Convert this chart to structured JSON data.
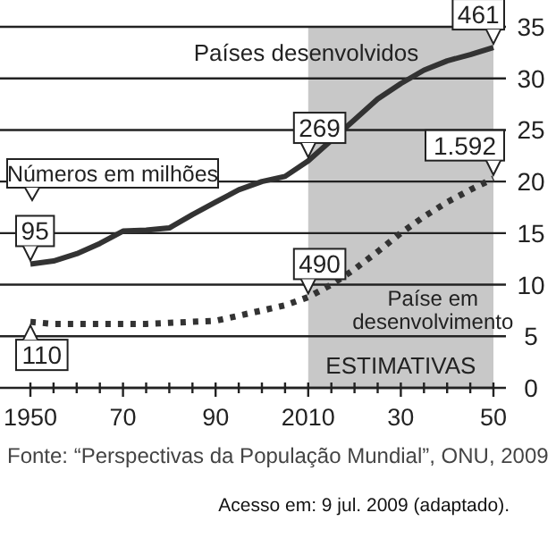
{
  "chart_data": {
    "type": "line",
    "x": [
      1950,
      1955,
      1960,
      1965,
      1970,
      1975,
      1980,
      1985,
      1990,
      1995,
      2000,
      2005,
      2010,
      2015,
      2020,
      2025,
      2030,
      2035,
      2040,
      2045,
      2050
    ],
    "series": [
      {
        "name": "Países desenvolvidos",
        "color": "#333333",
        "line_style": "solid",
        "values": [
          12,
          12.3,
          13,
          14,
          15.2,
          15.3,
          15.5,
          16.8,
          18,
          19.2,
          20,
          20.5,
          22,
          24,
          26,
          28,
          29.5,
          30.8,
          31.7,
          32.3,
          33
        ]
      },
      {
        "name": "Paíse em desenvolvimento",
        "color": "#333333",
        "line_style": "dotted",
        "values": [
          6.4,
          6.2,
          6.2,
          6.2,
          6.2,
          6.2,
          6.3,
          6.4,
          6.5,
          7,
          7.5,
          8,
          8.8,
          10,
          11.5,
          13.2,
          15,
          16.6,
          18,
          19.2,
          20.3
        ]
      }
    ],
    "xlim": [
      1950,
      2050
    ],
    "xticks": [
      {
        "value": 1950,
        "label": "1950"
      },
      {
        "value": 1955,
        "label": null
      },
      {
        "value": 1960,
        "label": null
      },
      {
        "value": 1965,
        "label": null
      },
      {
        "value": 1970,
        "label": "70"
      },
      {
        "value": 1975,
        "label": null
      },
      {
        "value": 1980,
        "label": null
      },
      {
        "value": 1985,
        "label": null
      },
      {
        "value": 1990,
        "label": "90"
      },
      {
        "value": 1995,
        "label": null
      },
      {
        "value": 2000,
        "label": null
      },
      {
        "value": 2005,
        "label": null
      },
      {
        "value": 2010,
        "label": "2010"
      },
      {
        "value": 2015,
        "label": null
      },
      {
        "value": 2020,
        "label": null
      },
      {
        "value": 2025,
        "label": null
      },
      {
        "value": 2030,
        "label": "30"
      },
      {
        "value": 2035,
        "label": null
      },
      {
        "value": 2040,
        "label": null
      },
      {
        "value": 2045,
        "label": null
      },
      {
        "value": 2050,
        "label": "50"
      }
    ],
    "ylim": [
      0,
      35
    ],
    "yticks": [
      0,
      5,
      10,
      15,
      20,
      25,
      30,
      35
    ],
    "grid": "y",
    "bands": [
      {
        "axis": "x",
        "from": 2010,
        "to": 2050,
        "label": "ESTIMATIVAS",
        "color": "#c8c8c8"
      }
    ],
    "annotations": [
      {
        "text": "95",
        "x": 1950,
        "y": 12
      },
      {
        "text": "110",
        "x": 1950,
        "y": 6.4
      },
      {
        "text": "269",
        "x": 2010,
        "y": 22
      },
      {
        "text": "490",
        "x": 2010,
        "y": 8.8
      },
      {
        "text": "461",
        "x": 2050,
        "y": 33
      },
      {
        "text": "1.592",
        "x": 2050,
        "y": 20.3
      },
      "Números em milhões",
      "Fonte: “Perspectivas da População Mundial”, ONU, 2009",
      "Acesso em: 9 jul. 2009 (adaptado)."
    ]
  }
}
